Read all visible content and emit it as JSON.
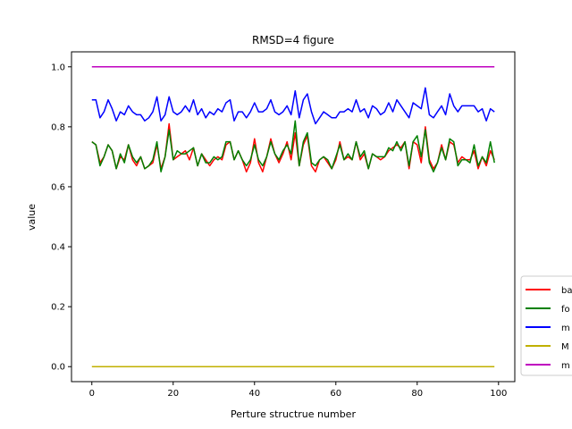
{
  "chart_data": {
    "type": "line",
    "title": "RMSD=4 figure",
    "xlabel": "Perture structrue number",
    "ylabel": "value",
    "xlim": [
      -5,
      104
    ],
    "ylim": [
      -0.05,
      1.05
    ],
    "xticks": [
      0,
      20,
      40,
      60,
      80,
      100
    ],
    "yticks": [
      0.0,
      0.2,
      0.4,
      0.6,
      0.8,
      1.0
    ],
    "xtick_labels": [
      "0",
      "20",
      "40",
      "60",
      "80",
      "100"
    ],
    "ytick_labels": [
      "0.0",
      "0.2",
      "0.4",
      "0.6",
      "0.8",
      "1.0"
    ],
    "grid": false,
    "legend_position": "right, lower (partially cut off)",
    "x": [
      0,
      1,
      2,
      3,
      4,
      5,
      6,
      7,
      8,
      9,
      10,
      11,
      12,
      13,
      14,
      15,
      16,
      17,
      18,
      19,
      20,
      21,
      22,
      23,
      24,
      25,
      26,
      27,
      28,
      29,
      30,
      31,
      32,
      33,
      34,
      35,
      36,
      37,
      38,
      39,
      40,
      41,
      42,
      43,
      44,
      45,
      46,
      47,
      48,
      49,
      50,
      51,
      52,
      53,
      54,
      55,
      56,
      57,
      58,
      59,
      60,
      61,
      62,
      63,
      64,
      65,
      66,
      67,
      68,
      69,
      70,
      71,
      72,
      73,
      74,
      75,
      76,
      77,
      78,
      79,
      80,
      81,
      82,
      83,
      84,
      85,
      86,
      87,
      88,
      89,
      90,
      91,
      92,
      93,
      94,
      95,
      96,
      97,
      98,
      99
    ],
    "series": [
      {
        "name": "ba",
        "color": "#ff0000",
        "values": [
          0.75,
          0.74,
          0.68,
          0.7,
          0.74,
          0.72,
          0.66,
          0.7,
          0.69,
          0.74,
          0.69,
          0.67,
          0.7,
          0.66,
          0.67,
          0.68,
          0.74,
          0.66,
          0.7,
          0.81,
          0.69,
          0.7,
          0.71,
          0.72,
          0.69,
          0.73,
          0.67,
          0.71,
          0.69,
          0.67,
          0.69,
          0.7,
          0.69,
          0.74,
          0.75,
          0.69,
          0.72,
          0.69,
          0.65,
          0.68,
          0.76,
          0.68,
          0.65,
          0.7,
          0.76,
          0.71,
          0.68,
          0.71,
          0.75,
          0.69,
          0.78,
          0.67,
          0.74,
          0.77,
          0.67,
          0.65,
          0.69,
          0.7,
          0.68,
          0.66,
          0.69,
          0.75,
          0.69,
          0.7,
          0.69,
          0.75,
          0.69,
          0.71,
          0.66,
          0.71,
          0.7,
          0.69,
          0.7,
          0.72,
          0.73,
          0.74,
          0.73,
          0.75,
          0.66,
          0.75,
          0.74,
          0.68,
          0.8,
          0.69,
          0.66,
          0.68,
          0.74,
          0.69,
          0.75,
          0.74,
          0.68,
          0.7,
          0.69,
          0.69,
          0.72,
          0.66,
          0.7,
          0.67,
          0.72,
          0.69
        ]
      },
      {
        "name": "fo",
        "color": "#008000",
        "values": [
          0.75,
          0.74,
          0.67,
          0.7,
          0.74,
          0.72,
          0.66,
          0.71,
          0.68,
          0.74,
          0.7,
          0.68,
          0.7,
          0.66,
          0.67,
          0.69,
          0.75,
          0.65,
          0.7,
          0.79,
          0.69,
          0.72,
          0.71,
          0.71,
          0.72,
          0.73,
          0.67,
          0.71,
          0.68,
          0.68,
          0.7,
          0.69,
          0.7,
          0.75,
          0.75,
          0.69,
          0.72,
          0.69,
          0.67,
          0.69,
          0.74,
          0.69,
          0.67,
          0.7,
          0.75,
          0.71,
          0.69,
          0.72,
          0.74,
          0.71,
          0.82,
          0.67,
          0.75,
          0.78,
          0.68,
          0.67,
          0.69,
          0.7,
          0.69,
          0.66,
          0.7,
          0.74,
          0.69,
          0.71,
          0.69,
          0.75,
          0.7,
          0.72,
          0.66,
          0.71,
          0.7,
          0.7,
          0.7,
          0.73,
          0.72,
          0.75,
          0.72,
          0.75,
          0.67,
          0.75,
          0.77,
          0.7,
          0.79,
          0.68,
          0.65,
          0.68,
          0.73,
          0.69,
          0.76,
          0.75,
          0.67,
          0.69,
          0.69,
          0.68,
          0.74,
          0.67,
          0.7,
          0.68,
          0.75,
          0.68
        ]
      },
      {
        "name": "m",
        "color": "#0000ff",
        "values": [
          0.89,
          0.89,
          0.83,
          0.85,
          0.89,
          0.86,
          0.82,
          0.85,
          0.84,
          0.87,
          0.85,
          0.84,
          0.84,
          0.82,
          0.83,
          0.85,
          0.9,
          0.82,
          0.84,
          0.9,
          0.85,
          0.84,
          0.85,
          0.87,
          0.85,
          0.89,
          0.84,
          0.86,
          0.83,
          0.85,
          0.84,
          0.86,
          0.85,
          0.88,
          0.89,
          0.82,
          0.85,
          0.85,
          0.83,
          0.85,
          0.88,
          0.85,
          0.85,
          0.86,
          0.89,
          0.85,
          0.84,
          0.85,
          0.87,
          0.84,
          0.92,
          0.83,
          0.89,
          0.91,
          0.85,
          0.81,
          0.83,
          0.85,
          0.84,
          0.83,
          0.83,
          0.85,
          0.85,
          0.86,
          0.85,
          0.89,
          0.85,
          0.86,
          0.83,
          0.87,
          0.86,
          0.84,
          0.85,
          0.88,
          0.85,
          0.89,
          0.87,
          0.85,
          0.83,
          0.88,
          0.87,
          0.86,
          0.93,
          0.84,
          0.83,
          0.85,
          0.87,
          0.84,
          0.91,
          0.87,
          0.85,
          0.87,
          0.87,
          0.87,
          0.87,
          0.85,
          0.86,
          0.82,
          0.86,
          0.85
        ]
      },
      {
        "name": "M",
        "color": "#c0b000",
        "values": [
          0.0,
          0.0,
          0.0,
          0.0,
          0.0,
          0.0,
          0.0,
          0.0,
          0.0,
          0.0,
          0.0,
          0.0,
          0.0,
          0.0,
          0.0,
          0.0,
          0.0,
          0.0,
          0.0,
          0.0,
          0.0,
          0.0,
          0.0,
          0.0,
          0.0,
          0.0,
          0.0,
          0.0,
          0.0,
          0.0,
          0.0,
          0.0,
          0.0,
          0.0,
          0.0,
          0.0,
          0.0,
          0.0,
          0.0,
          0.0,
          0.0,
          0.0,
          0.0,
          0.0,
          0.0,
          0.0,
          0.0,
          0.0,
          0.0,
          0.0,
          0.0,
          0.0,
          0.0,
          0.0,
          0.0,
          0.0,
          0.0,
          0.0,
          0.0,
          0.0,
          0.0,
          0.0,
          0.0,
          0.0,
          0.0,
          0.0,
          0.0,
          0.0,
          0.0,
          0.0,
          0.0,
          0.0,
          0.0,
          0.0,
          0.0,
          0.0,
          0.0,
          0.0,
          0.0,
          0.0,
          0.0,
          0.0,
          0.0,
          0.0,
          0.0,
          0.0,
          0.0,
          0.0,
          0.0,
          0.0,
          0.0,
          0.0,
          0.0,
          0.0,
          0.0,
          0.0,
          0.0,
          0.0,
          0.0,
          0.0
        ]
      },
      {
        "name": "m",
        "color": "#bf00bf",
        "values": [
          1.0,
          1.0,
          1.0,
          1.0,
          1.0,
          1.0,
          1.0,
          1.0,
          1.0,
          1.0,
          1.0,
          1.0,
          1.0,
          1.0,
          1.0,
          1.0,
          1.0,
          1.0,
          1.0,
          1.0,
          1.0,
          1.0,
          1.0,
          1.0,
          1.0,
          1.0,
          1.0,
          1.0,
          1.0,
          1.0,
          1.0,
          1.0,
          1.0,
          1.0,
          1.0,
          1.0,
          1.0,
          1.0,
          1.0,
          1.0,
          1.0,
          1.0,
          1.0,
          1.0,
          1.0,
          1.0,
          1.0,
          1.0,
          1.0,
          1.0,
          1.0,
          1.0,
          1.0,
          1.0,
          1.0,
          1.0,
          1.0,
          1.0,
          1.0,
          1.0,
          1.0,
          1.0,
          1.0,
          1.0,
          1.0,
          1.0,
          1.0,
          1.0,
          1.0,
          1.0,
          1.0,
          1.0,
          1.0,
          1.0,
          1.0,
          1.0,
          1.0,
          1.0,
          1.0,
          1.0,
          1.0,
          1.0,
          1.0,
          1.0,
          1.0,
          1.0,
          1.0,
          1.0,
          1.0,
          1.0,
          1.0,
          1.0,
          1.0,
          1.0,
          1.0,
          1.0,
          1.0,
          1.0,
          1.0,
          1.0
        ]
      }
    ]
  }
}
